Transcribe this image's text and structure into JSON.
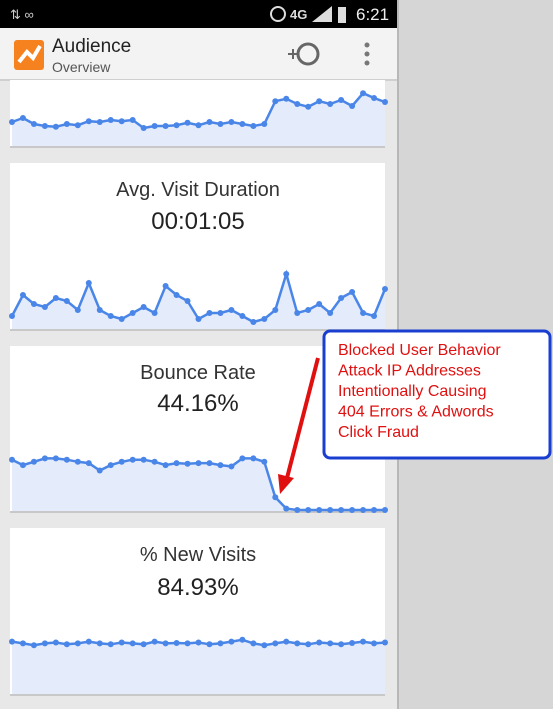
{
  "status_bar": {
    "network": "4G",
    "time": "6:21"
  },
  "app_bar": {
    "title": "Audience",
    "subtitle": "Overview"
  },
  "cards": [
    {
      "sparkline": {
        "type": "line",
        "color": "#4a86e8",
        "ylim": [
          0,
          100
        ],
        "values": [
          20,
          30,
          15,
          10,
          8,
          15,
          12,
          22,
          20,
          25,
          22,
          25,
          5,
          10,
          10,
          12,
          18,
          12,
          20,
          15,
          20,
          15,
          10,
          15,
          72,
          78,
          65,
          58,
          72,
          65,
          75,
          60,
          92,
          80,
          70
        ]
      }
    },
    {
      "title": "Avg. Visit Duration",
      "value": "00:01:05",
      "sparkline": {
        "type": "line",
        "color": "#4a86e8",
        "ylim": [
          0,
          100
        ],
        "values": [
          15,
          50,
          35,
          30,
          45,
          40,
          25,
          70,
          25,
          15,
          10,
          20,
          30,
          20,
          65,
          50,
          40,
          10,
          20,
          20,
          25,
          15,
          5,
          10,
          25,
          85,
          20,
          25,
          35,
          20,
          45,
          55,
          20,
          15,
          60
        ]
      }
    },
    {
      "title": "Bounce Rate",
      "value": "44.16%",
      "sparkline": {
        "type": "line",
        "color": "#4a86e8",
        "ylim": [
          0,
          100
        ],
        "values": [
          78,
          70,
          75,
          80,
          80,
          78,
          75,
          73,
          62,
          70,
          75,
          78,
          78,
          75,
          70,
          73,
          72,
          73,
          73,
          70,
          68,
          80,
          80,
          75,
          22,
          5,
          3,
          3,
          3,
          3,
          3,
          3,
          3,
          3,
          3
        ]
      }
    },
    {
      "title": "% New Visits",
      "value": "84.93%",
      "sparkline": {
        "type": "line",
        "color": "#4a86e8",
        "ylim": [
          0,
          100
        ],
        "values": [
          52,
          48,
          44,
          48,
          50,
          46,
          48,
          52,
          48,
          46,
          50,
          48,
          46,
          52,
          48,
          49,
          48,
          50,
          46,
          48,
          52,
          56,
          48,
          44,
          48,
          52,
          48,
          46,
          50,
          48,
          46,
          49,
          52,
          48,
          50
        ]
      }
    }
  ],
  "annotation": {
    "lines": [
      "Blocked User Behavior",
      "Attack IP Addresses",
      "Intentionally Causing",
      "404 Errors & Adwords",
      "Click Fraud"
    ]
  }
}
